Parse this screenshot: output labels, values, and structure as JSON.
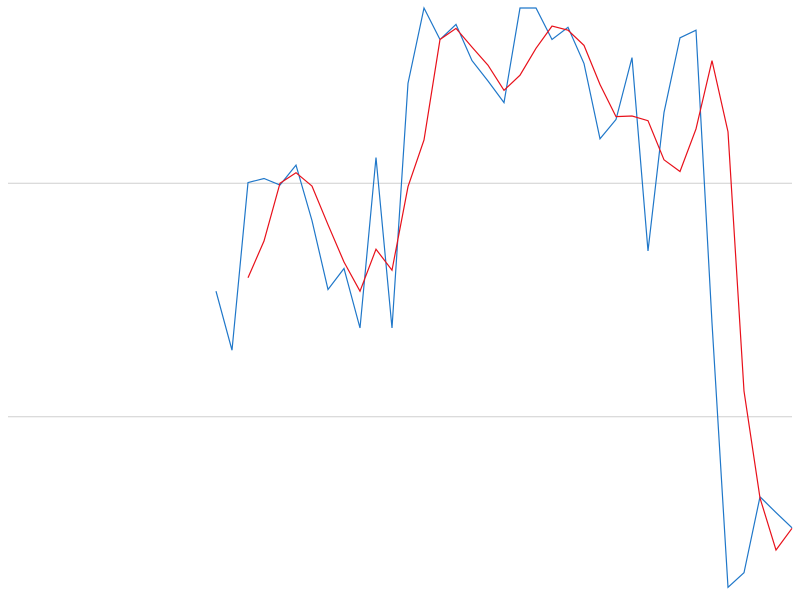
{
  "chart_data": {
    "type": "line",
    "title": "",
    "xlabel": "",
    "ylabel": "",
    "grid": true,
    "legend": "none",
    "xlim": [
      0,
      49
    ],
    "ylim": [
      0,
      100
    ],
    "gridlines_y": [
      30,
      70
    ],
    "x": [
      0,
      1,
      2,
      3,
      4,
      5,
      6,
      7,
      8,
      9,
      10,
      11,
      12,
      13,
      14,
      15,
      16,
      17,
      18,
      19,
      20,
      21,
      22,
      23,
      24,
      25,
      26,
      27,
      28,
      29,
      30,
      31,
      32,
      33,
      34,
      35,
      36,
      37,
      38,
      39,
      40,
      41,
      42,
      43,
      44,
      45,
      46,
      47,
      48,
      49
    ],
    "series": [
      {
        "color": "#1f77c9",
        "values": [
          null,
          null,
          null,
          null,
          null,
          null,
          null,
          null,
          null,
          null,
          null,
          null,
          null,
          51.5,
          41.4,
          70.1,
          70.8,
          69.7,
          73.1,
          63.6,
          51.8,
          55.4,
          45.2,
          74.4,
          45.2,
          87.1,
          100,
          94.6,
          97.2,
          91.0,
          87.5,
          83.8,
          100,
          100,
          94.6,
          96.7,
          90.5,
          77.6,
          80.9,
          91.5,
          58.4,
          82.1,
          94.9,
          96.2,
          46.1,
          0.8,
          3.3,
          16.3,
          13.6,
          11.0
        ]
      },
      {
        "color": "#e8101a",
        "values": [
          null,
          null,
          null,
          null,
          null,
          null,
          null,
          null,
          null,
          null,
          null,
          null,
          null,
          null,
          null,
          53.8,
          60.1,
          70.0,
          71.8,
          69.5,
          62.9,
          56.5,
          51.5,
          58.7,
          55.1,
          69.4,
          77.4,
          94.6,
          96.5,
          93.3,
          90.2,
          85.9,
          88.5,
          93.1,
          96.9,
          96.2,
          93.6,
          86.9,
          81.4,
          81.5,
          80.7,
          74.0,
          72.0,
          79.3,
          91.0,
          78.8,
          34.4,
          16.1,
          7.2,
          10.9
        ]
      }
    ]
  }
}
